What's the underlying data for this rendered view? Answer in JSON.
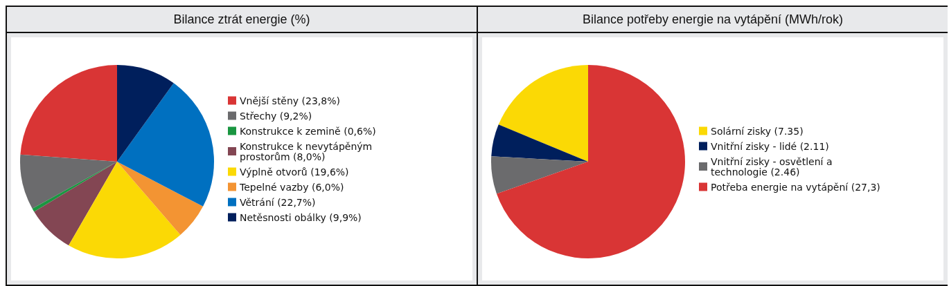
{
  "chart_data": [
    {
      "type": "pie",
      "title": "Bilance ztrát energie (%)",
      "categories": [
        "Vnější stěny (23,8%)",
        "Střechy (9,2%)",
        "Konstrukce k zemině (0,6%)",
        "Konstrukce k nevytápěným prostorům (8,0%)",
        "Výplně otvorů (19,6%)",
        "Tepelné vazby (6,0%)",
        "Větrání (22,7%)",
        "Netěsnosti obálky (9,9%)"
      ],
      "values": [
        23.8,
        9.2,
        0.6,
        8.0,
        19.6,
        6.0,
        22.7,
        9.9
      ],
      "colors": [
        "#d93535",
        "#6b6b6d",
        "#1a9641",
        "#834653",
        "#fbd905",
        "#f39433",
        "#0070c0",
        "#001f5c"
      ],
      "legend": "right"
    },
    {
      "type": "pie",
      "title": "Bilance potřeby energie na vytápění (MWh/rok)",
      "categories": [
        "Solární zisky (7.35)",
        "Vnitřní zisky - lidé (2.11)",
        "Vnitřní zisky - osvětlení a technologie (2.46)",
        "Potřeba energie na vytápění (27,3)"
      ],
      "values": [
        7.35,
        2.11,
        2.46,
        27.3
      ],
      "colors": [
        "#fbd905",
        "#001f5c",
        "#6b6b6d",
        "#d93535"
      ],
      "legend": "right"
    }
  ]
}
